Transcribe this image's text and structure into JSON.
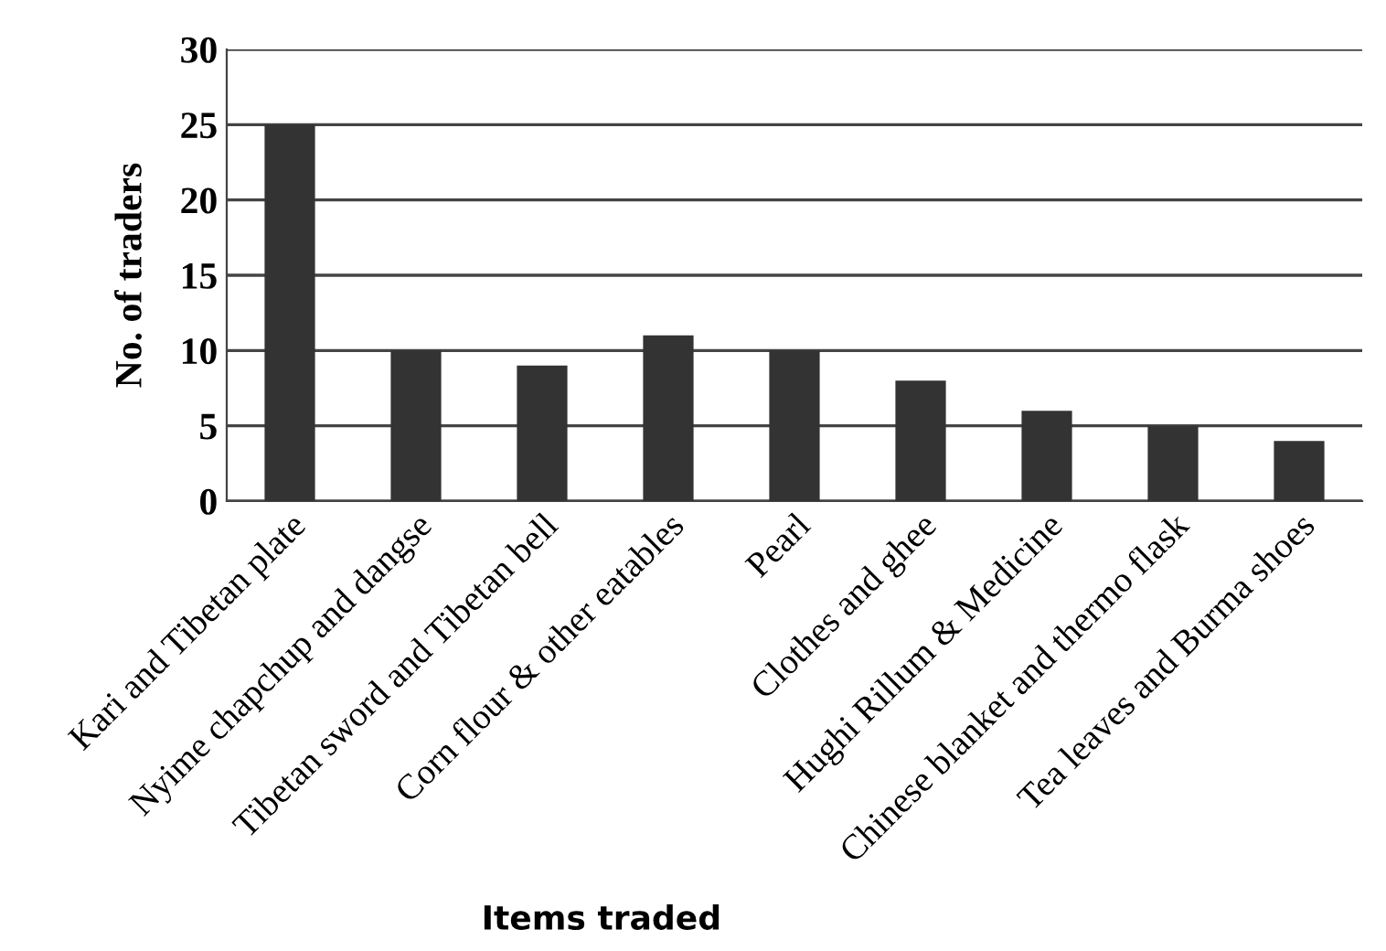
{
  "chart_data": {
    "type": "bar",
    "xlabel": "Items traded",
    "ylabel": "No. of traders",
    "categories": [
      "Kari and Tibetan plate",
      "Nyime chapchup and dangse",
      "Tibetan sword and Tibetan bell",
      "Corn flour & other eatables",
      "Pearl",
      "Clothes and ghee",
      "Hughi Rillum & Medicine",
      "Chinese blanket and thermo flask",
      "Tea leaves and Burma shoes"
    ],
    "values": [
      25,
      10,
      9,
      11,
      10,
      8,
      6,
      5,
      4
    ],
    "color": "#333333",
    "ylim": [
      0,
      30
    ],
    "yticks": [
      0,
      5,
      10,
      15,
      20,
      25,
      30
    ],
    "grid": "y",
    "legend": false
  }
}
